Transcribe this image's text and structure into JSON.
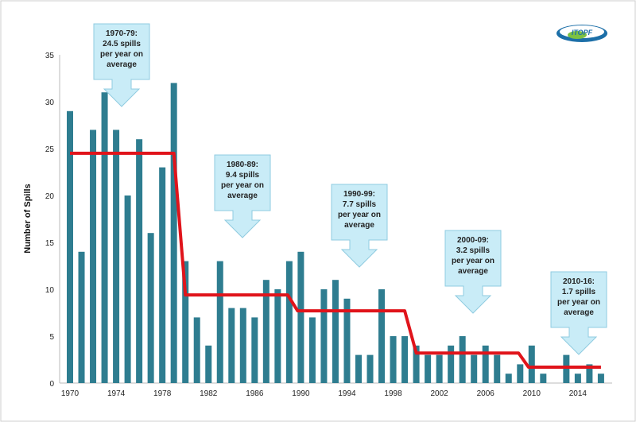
{
  "logo_text": "ITOPF",
  "chart_data": {
    "type": "bar",
    "title": "",
    "xlabel": "",
    "ylabel": "Number of Spills",
    "ylim": [
      0,
      35
    ],
    "yticks": [
      0,
      5,
      10,
      15,
      20,
      25,
      30,
      35
    ],
    "xtick_labels": [
      "1970",
      "1974",
      "1978",
      "1982",
      "1986",
      "1990",
      "1994",
      "1998",
      "2002",
      "2006",
      "2010",
      "2014"
    ],
    "grid": false,
    "bar_color": "#2e7d90",
    "line_color": "#e0141b",
    "x": [
      1970,
      1971,
      1972,
      1973,
      1974,
      1975,
      1976,
      1977,
      1978,
      1979,
      1980,
      1981,
      1982,
      1983,
      1984,
      1985,
      1986,
      1987,
      1988,
      1989,
      1990,
      1991,
      1992,
      1993,
      1994,
      1995,
      1996,
      1997,
      1998,
      1999,
      2000,
      2001,
      2002,
      2003,
      2004,
      2005,
      2006,
      2007,
      2008,
      2009,
      2010,
      2011,
      2012,
      2013,
      2014,
      2015,
      2016
    ],
    "values": [
      29,
      14,
      27,
      31,
      27,
      20,
      26,
      16,
      23,
      32,
      13,
      7,
      4,
      13,
      8,
      8,
      7,
      11,
      10,
      13,
      14,
      7,
      10,
      11,
      9,
      3,
      3,
      10,
      5,
      5,
      4,
      3,
      3,
      4,
      5,
      3,
      4,
      3,
      1,
      2,
      4,
      1,
      0,
      3,
      1,
      2,
      1
    ],
    "averages": [
      {
        "from": 1970,
        "to": 1979,
        "value": 24.5,
        "lines": [
          "1970-79:",
          "24.5 spills",
          "per year on",
          "average"
        ]
      },
      {
        "from": 1980,
        "to": 1989,
        "value": 9.4,
        "lines": [
          "1980-89:",
          "9.4 spills",
          "per year on",
          "average"
        ]
      },
      {
        "from": 1990,
        "to": 1999,
        "value": 7.7,
        "lines": [
          "1990-99:",
          "7.7 spills",
          "per year on",
          "average"
        ]
      },
      {
        "from": 2000,
        "to": 2009,
        "value": 3.2,
        "lines": [
          "2000-09:",
          "3.2 spills",
          "per year on",
          "average"
        ]
      },
      {
        "from": 2010,
        "to": 2016,
        "value": 1.7,
        "lines": [
          "2010-16:",
          "1.7 spills",
          "per year on",
          "average"
        ]
      }
    ]
  }
}
